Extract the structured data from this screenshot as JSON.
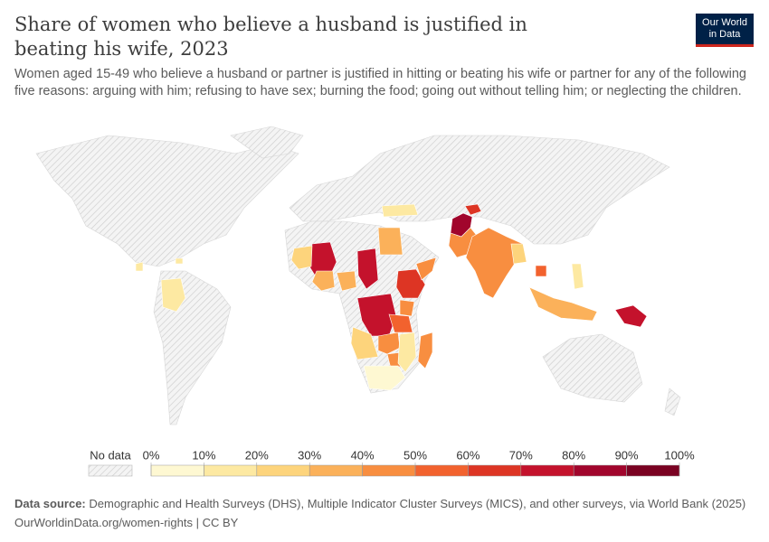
{
  "header": {
    "logo": [
      "Our World",
      "in Data"
    ]
  },
  "chart_data": {
    "type": "choropleth",
    "title": "Share of women who believe a husband is justified in beating his wife, 2023",
    "subtitle": "Women aged 15-49 who believe a husband or partner is justified in hitting or beating his wife or partner for any of the following five reasons: arguing with him; refusing to have sex; burning the food; going out without telling him; or neglecting the children.",
    "values": [
      80,
      45,
      60,
      45,
      70,
      25,
      70,
      65,
      75,
      25,
      45,
      40,
      15,
      5,
      45,
      35,
      30,
      35,
      40,
      50,
      45,
      15,
      10,
      10,
      15,
      35,
      70,
      10,
      50,
      20
    ],
    "legend": {
      "no_data_label": "No data",
      "ticks": [
        {
          "value": 0,
          "label": "0%"
        },
        {
          "value": 10,
          "label": "10%"
        },
        {
          "value": 20,
          "label": "20%"
        },
        {
          "value": 30,
          "label": "30%"
        },
        {
          "value": 40,
          "label": "40%"
        },
        {
          "value": 50,
          "label": "50%"
        },
        {
          "value": 60,
          "label": "60%"
        },
        {
          "value": 70,
          "label": "70%"
        },
        {
          "value": 80,
          "label": "80%"
        },
        {
          "value": 90,
          "label": "90%"
        },
        {
          "value": 100,
          "label": "100%"
        }
      ],
      "colors": [
        "#fef8d2",
        "#fde9a2",
        "#fdd47c",
        "#fbb15a",
        "#f88e40",
        "#f2622e",
        "#dd3524",
        "#c4122c",
        "#a1052c",
        "#7a0222"
      ]
    }
  },
  "footer": {
    "source_label": "Data source:",
    "source": "Demographic and Health Surveys (DHS), Multiple Indicator Cluster Surveys (MICS), and other surveys, via World Bank (2025)",
    "url": "OurWorldinData.org/women-rights | CC BY"
  }
}
